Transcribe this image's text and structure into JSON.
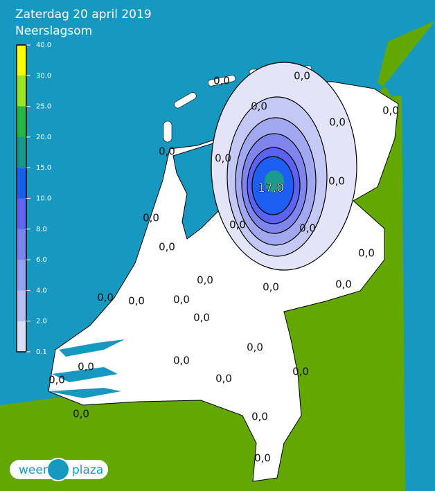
{
  "header": {
    "title": "Zaterdag 20 april 2019",
    "subtitle": "Neerslagsom"
  },
  "legend": {
    "ticks": [
      "40.0",
      "30.0",
      "25.0",
      "20.0",
      "15.0",
      "10.0",
      "8.0",
      "6.0",
      "4.0",
      "2.0",
      "0.1"
    ]
  },
  "labels": [
    "0,0",
    "0,0",
    "0,0",
    "0,0",
    "0,0",
    "0,0",
    "0,0",
    "0,0",
    "17,0",
    "0,0",
    "0,0",
    "0,0",
    "0,0",
    "0,0",
    "0,0",
    "0,0",
    "0,0",
    "0,0",
    "0,0",
    "0,0",
    "0,0",
    "0,0",
    "0,0",
    "0,0",
    "0,0",
    "0,0",
    "0,0",
    "0,0",
    "0,0",
    "0,0"
  ],
  "logo": {
    "left": "weer",
    "right": "plaza"
  }
}
